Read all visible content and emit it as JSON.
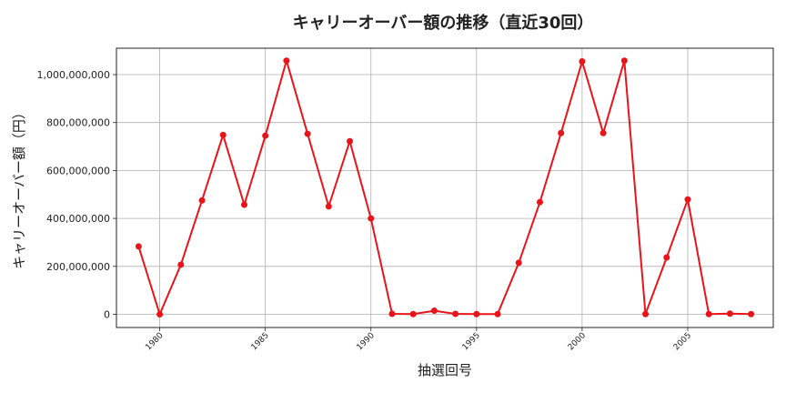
{
  "chart_data": {
    "type": "line",
    "title": "キャリーオーバー額の推移（直近30回）",
    "xlabel": "抽選回号",
    "ylabel": "キャリーオーバー額（円）",
    "xlim": [
      1977.95,
      2009.05
    ],
    "ylim": [
      -55000000,
      1110000000
    ],
    "x_ticks": [
      1980,
      1985,
      1990,
      1995,
      2000,
      2005
    ],
    "y_ticks": [
      0,
      200000000,
      400000000,
      600000000,
      800000000,
      1000000000
    ],
    "y_tick_labels": [
      "0",
      "200,000,000",
      "400,000,000",
      "600,000,000",
      "800,000,000",
      "1,000,000,000"
    ],
    "grid": true,
    "color": "#e8141a",
    "x": [
      1979,
      1980,
      1981,
      1982,
      1983,
      1984,
      1985,
      1986,
      1987,
      1988,
      1989,
      1990,
      1991,
      1992,
      1993,
      1994,
      1995,
      1996,
      1997,
      1998,
      1999,
      2000,
      2001,
      2002,
      2003,
      2004,
      2005,
      2006,
      2007,
      2008
    ],
    "values": [
      283000000,
      0,
      207000000,
      475000000,
      748000000,
      457000000,
      745000000,
      1058000000,
      753000000,
      450000000,
      722000000,
      400000000,
      2000000,
      1000000,
      15000000,
      2000000,
      1000000,
      1000000,
      215000000,
      468000000,
      756000000,
      1055000000,
      756000000,
      1058000000,
      1000000,
      237000000,
      479000000,
      1000000,
      3000000,
      1000000
    ]
  }
}
